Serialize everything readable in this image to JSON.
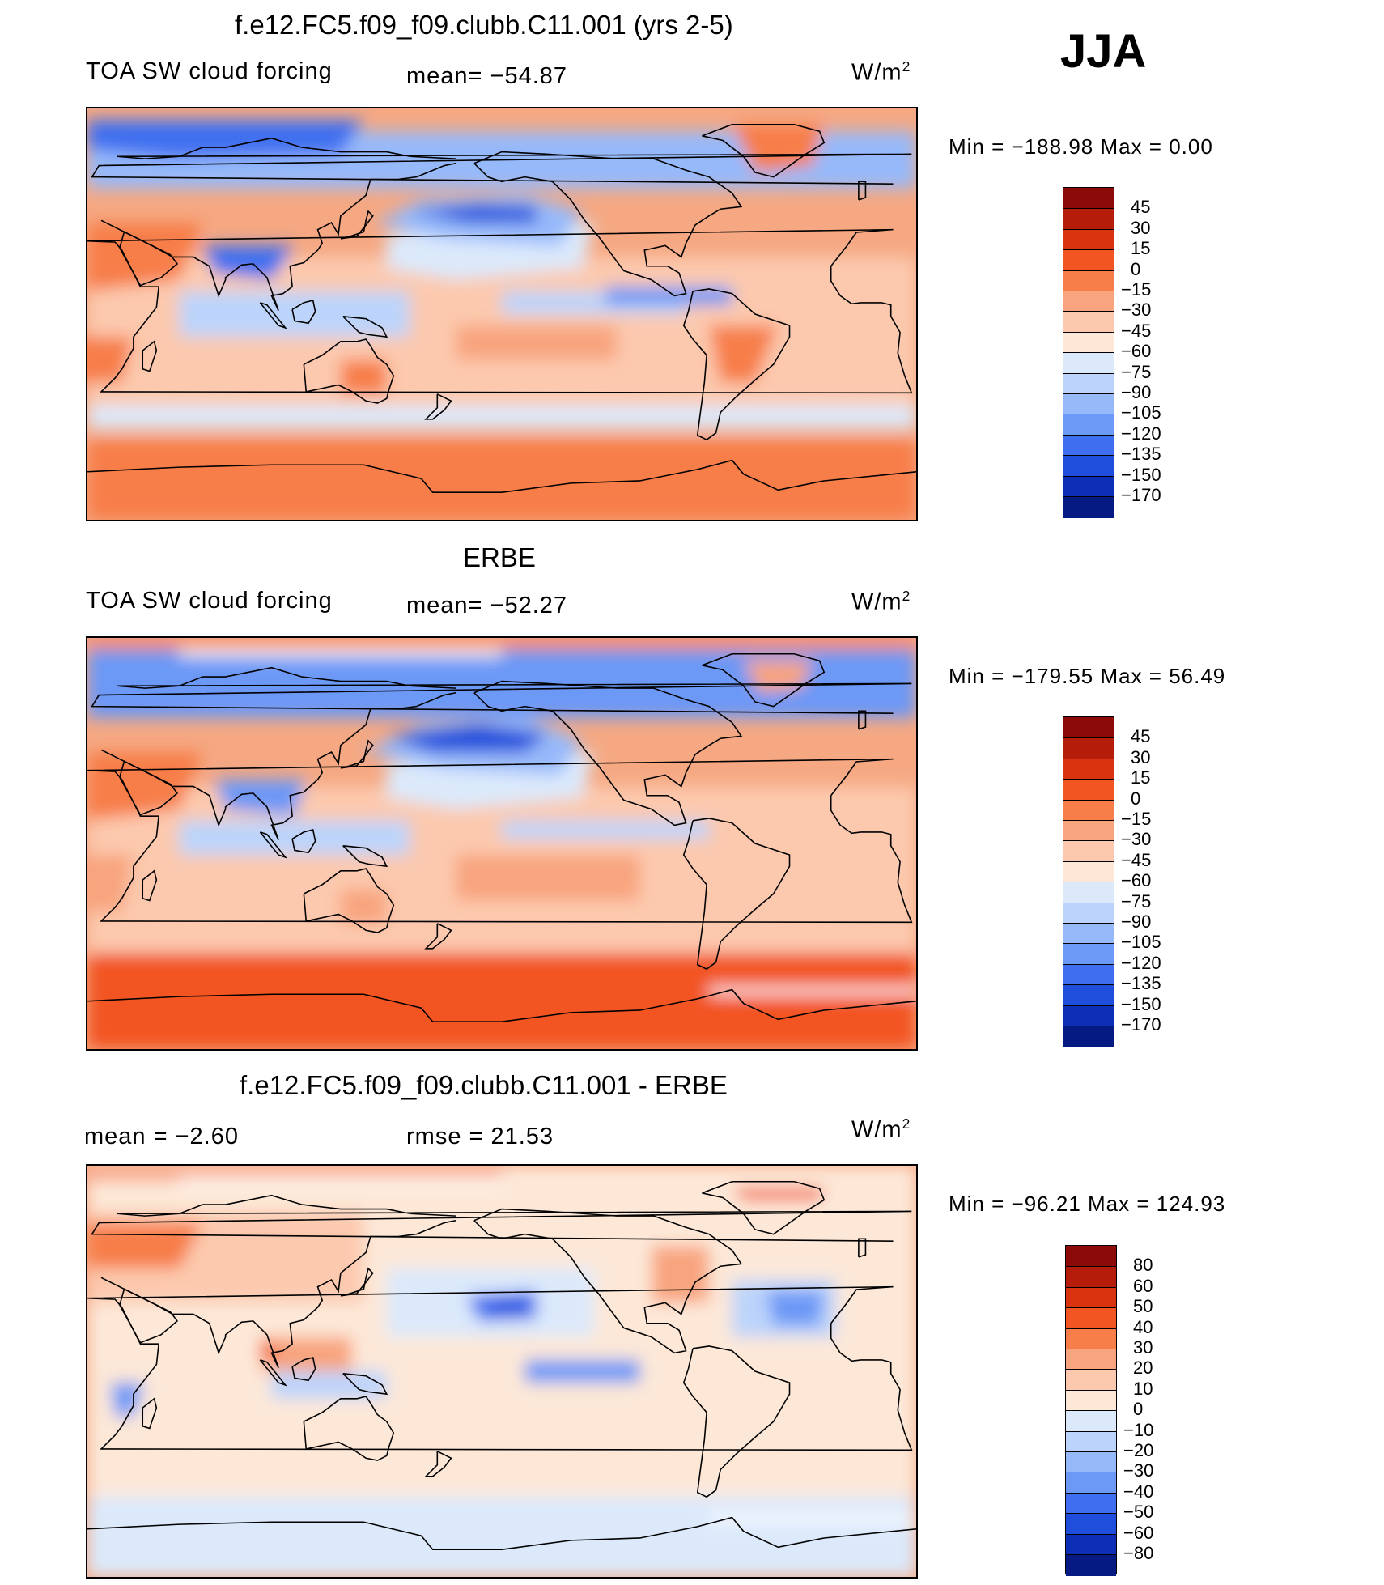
{
  "season": "JJA",
  "panels": [
    {
      "title": "f.e12.FC5.f09_f09.clubb.C11.001 (yrs 2-5)",
      "left_label": "TOA SW cloud forcing",
      "center_label": "mean= −54.87",
      "units": "W/m",
      "units_sup": "2",
      "min_max": "Min  =  −188.98  Max  =     0.00"
    },
    {
      "title": "ERBE",
      "left_label": "TOA SW cloud forcing",
      "center_label": "mean= −52.27",
      "units": "W/m",
      "units_sup": "2",
      "min_max": "Min  =  −179.55  Max  =   56.49"
    },
    {
      "title": "f.e12.FC5.f09_f09.clubb.C11.001 - ERBE",
      "left_label": "mean  =    −2.60",
      "center_label": "rmse  =    21.53",
      "units": "W/m",
      "units_sup": "2",
      "min_max": "Min  =  −96.21  Max  =  124.93"
    }
  ],
  "chart_data": [
    {
      "type": "heatmap",
      "title": "f.e12.FC5.f09_f09.clubb.C11.001 (yrs 2-5)",
      "variable": "TOA SW cloud forcing",
      "units": "W/m2",
      "mean": -54.87,
      "min": -188.98,
      "max": 0.0,
      "colorbar_levels": [
        "45",
        "30",
        "15",
        "0",
        "−15",
        "−30",
        "−45",
        "−60",
        "−75",
        "−90",
        "−105",
        "−120",
        "−135",
        "−150",
        "−170"
      ],
      "colorbar_colors": [
        "#8c0a08",
        "#b51c0a",
        "#d93310",
        "#f25422",
        "#f77e48",
        "#f8a47e",
        "#fcc9ae",
        "#fde8d8",
        "#dbe9fb",
        "#bcd4fb",
        "#96b9fa",
        "#6c98f6",
        "#3f6ff0",
        "#1f4ddc",
        "#0d2fb7",
        "#061a84"
      ]
    },
    {
      "type": "heatmap",
      "title": "ERBE",
      "variable": "TOA SW cloud forcing",
      "units": "W/m2",
      "mean": -52.27,
      "min": -179.55,
      "max": 56.49,
      "colorbar_levels": [
        "45",
        "30",
        "15",
        "0",
        "−15",
        "−30",
        "−45",
        "−60",
        "−75",
        "−90",
        "−105",
        "−120",
        "−135",
        "−150",
        "−170"
      ],
      "colorbar_colors": [
        "#8c0a08",
        "#b51c0a",
        "#d93310",
        "#f25422",
        "#f77e48",
        "#f8a47e",
        "#fcc9ae",
        "#fde8d8",
        "#dbe9fb",
        "#bcd4fb",
        "#96b9fa",
        "#6c98f6",
        "#3f6ff0",
        "#1f4ddc",
        "#0d2fb7",
        "#061a84"
      ]
    },
    {
      "type": "heatmap",
      "title": "f.e12.FC5.f09_f09.clubb.C11.001 - ERBE",
      "units": "W/m2",
      "mean": -2.6,
      "rmse": 21.53,
      "min": -96.21,
      "max": 124.93,
      "colorbar_levels": [
        "80",
        "60",
        "50",
        "40",
        "30",
        "20",
        "10",
        "0",
        "−10",
        "−20",
        "−30",
        "−40",
        "−50",
        "−60",
        "−80"
      ],
      "colorbar_colors": [
        "#8c0a08",
        "#b51c0a",
        "#d93310",
        "#f25422",
        "#f77e48",
        "#f8a47e",
        "#fcc9ae",
        "#fde8d8",
        "#dbe9fb",
        "#bcd4fb",
        "#96b9fa",
        "#6c98f6",
        "#3f6ff0",
        "#1f4ddc",
        "#0d2fb7",
        "#061a84"
      ]
    }
  ]
}
